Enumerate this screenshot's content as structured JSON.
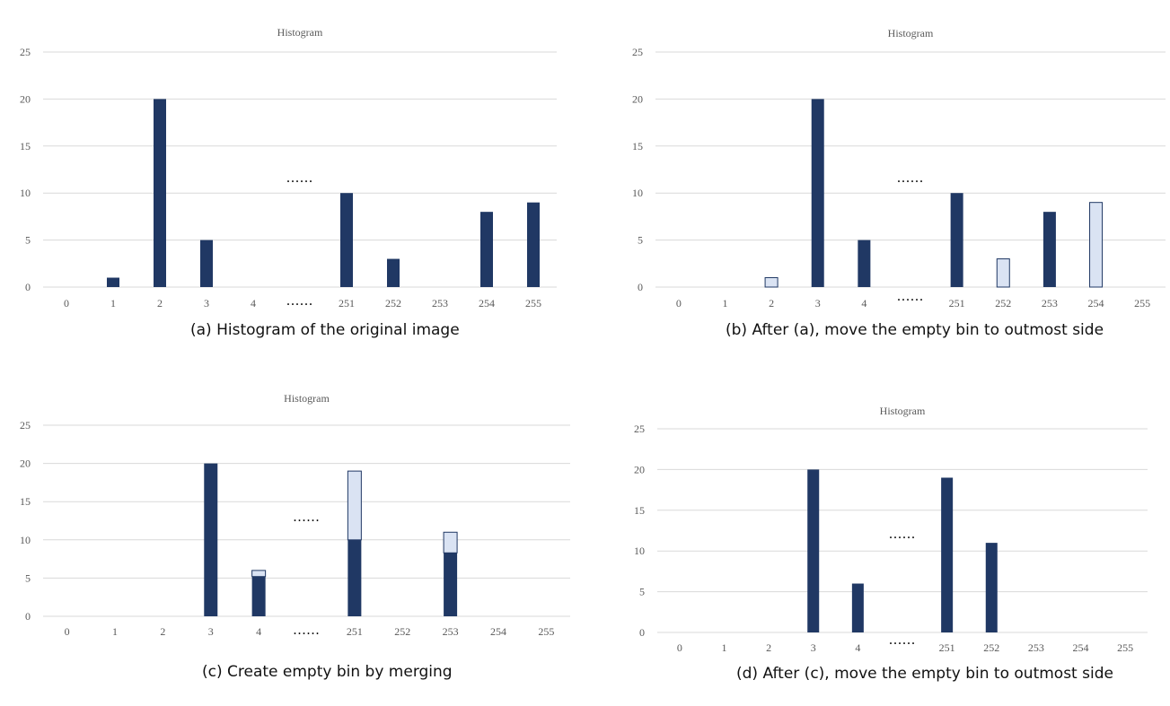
{
  "colors": {
    "dark": "#203864",
    "light": "#dae3f3",
    "bar_outline": "#203864"
  },
  "chart_data": [
    {
      "type": "bar",
      "title": "Histogram",
      "caption": "(a) Histogram of the original image",
      "categories": [
        "0",
        "1",
        "2",
        "3",
        "4",
        "",
        "251",
        "252",
        "253",
        "254",
        "255"
      ],
      "gap_marker": "......",
      "ylim": [
        0,
        25
      ],
      "yticks": [
        "0",
        "5",
        "10",
        "15",
        "20",
        "25"
      ],
      "grid": true,
      "series": [
        {
          "color": "dark",
          "values": [
            0,
            1,
            20,
            5,
            0,
            null,
            10,
            3,
            0,
            8,
            9
          ]
        }
      ]
    },
    {
      "type": "bar",
      "title": "Histogram",
      "caption": "(b) After (a), move the empty bin to outmost side",
      "categories": [
        "0",
        "1",
        "2",
        "3",
        "4",
        "",
        "251",
        "252",
        "253",
        "254",
        "255"
      ],
      "gap_marker": "......",
      "ylim": [
        0,
        25
      ],
      "yticks": [
        "0",
        "5",
        "10",
        "15",
        "20",
        "25"
      ],
      "grid": true,
      "series": [
        {
          "color": "dark",
          "values": [
            0,
            0,
            0,
            20,
            5,
            null,
            10,
            0,
            8,
            0,
            0
          ]
        },
        {
          "color": "light",
          "values": [
            0,
            0,
            1,
            0,
            0,
            null,
            0,
            3,
            0,
            9,
            0
          ]
        }
      ]
    },
    {
      "type": "bar",
      "title": "Histogram",
      "caption": "(c) Create empty bin by merging",
      "categories": [
        "0",
        "1",
        "2",
        "3",
        "4",
        "",
        "251",
        "252",
        "253",
        "254",
        "255"
      ],
      "gap_marker": "......",
      "ylim": [
        0,
        25
      ],
      "yticks": [
        "0",
        "5",
        "10",
        "15",
        "20",
        "25"
      ],
      "grid": true,
      "stacked": true,
      "series": [
        {
          "color": "dark",
          "values": [
            0,
            0,
            0,
            20,
            5.2,
            null,
            10,
            0,
            8.3,
            0,
            0
          ]
        },
        {
          "color": "light",
          "values": [
            0,
            0,
            0,
            0,
            0.8,
            null,
            9,
            0,
            2.7,
            0,
            0
          ]
        }
      ]
    },
    {
      "type": "bar",
      "title": "Histogram",
      "caption": "(d) After (c), move the empty bin to outmost side",
      "categories": [
        "0",
        "1",
        "2",
        "3",
        "4",
        "",
        "251",
        "252",
        "253",
        "254",
        "255"
      ],
      "gap_marker": "......",
      "ylim": [
        0,
        25
      ],
      "yticks": [
        "0",
        "5",
        "10",
        "15",
        "20",
        "25"
      ],
      "grid": true,
      "series": [
        {
          "color": "dark",
          "values": [
            0,
            0,
            0,
            20,
            6,
            null,
            19,
            11,
            0,
            0,
            0
          ]
        }
      ]
    }
  ]
}
